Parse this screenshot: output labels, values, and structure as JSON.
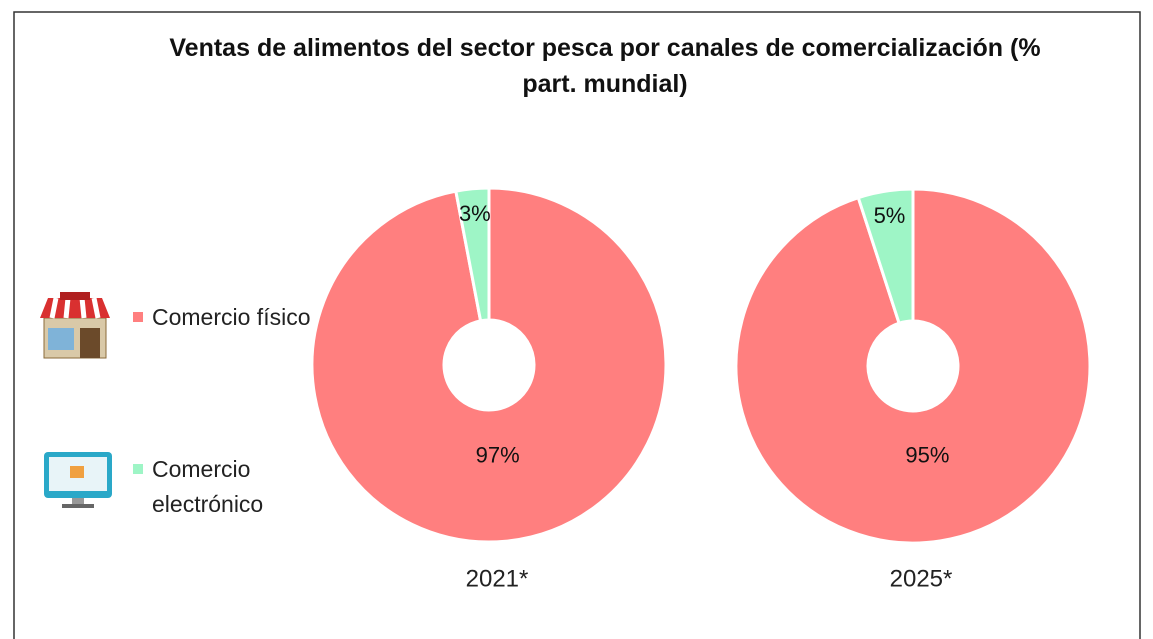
{
  "chart_data": {
    "type": "pie",
    "title": "Ventas de alimentos del sector pesca por canales de comercialización (% part. mundial)",
    "categories": [
      "Comercio físico",
      "Comercio electrónico"
    ],
    "colors": [
      "#ff7f7f",
      "#9ef5c6"
    ],
    "series": [
      {
        "name": "2021*",
        "values": [
          97,
          3
        ],
        "value_labels": [
          "97%",
          "3%"
        ]
      },
      {
        "name": "2025*",
        "values": [
          95,
          5
        ],
        "value_labels": [
          "95%",
          "5%"
        ]
      }
    ]
  }
}
